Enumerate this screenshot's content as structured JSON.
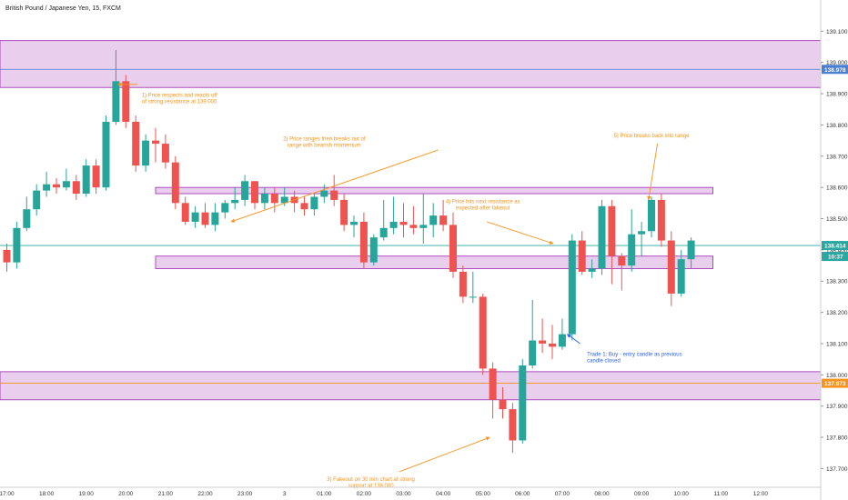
{
  "chart_data": {
    "type": "candlestick",
    "title": "British Pound / Japanese Yen, 15, FXCM",
    "ylim": [
      137.64,
      139.2
    ],
    "y_ticks": [
      "139.100",
      "139.000",
      "138.900",
      "138.800",
      "138.700",
      "138.600",
      "138.500",
      "138.400",
      "138.300",
      "138.200",
      "138.100",
      "138.000",
      "137.900",
      "137.800",
      "137.700"
    ],
    "x_ticks": [
      "17:00",
      "18:00",
      "19:00",
      "20:00",
      "21:00",
      "22:00",
      "23:00",
      "3",
      "01:00",
      "02:00",
      "03:00",
      "04:00",
      "05:00",
      "06:00",
      "07:00",
      "08:00",
      "09:00",
      "10:00",
      "11:00",
      "12:00"
    ],
    "x_tick_index": [
      0,
      4,
      8,
      12,
      16,
      20,
      24,
      28,
      32,
      36,
      40,
      44,
      48,
      52,
      56,
      60,
      64,
      68,
      72,
      76
    ],
    "candles": [
      [
        138.4,
        138.36,
        138.42,
        138.33
      ],
      [
        138.36,
        138.47,
        138.49,
        138.34
      ],
      [
        138.47,
        138.53,
        138.57,
        138.46
      ],
      [
        138.53,
        138.59,
        138.61,
        138.51
      ],
      [
        138.59,
        138.61,
        138.65,
        138.57
      ],
      [
        138.61,
        138.6,
        138.63,
        138.58
      ],
      [
        138.6,
        138.62,
        138.66,
        138.59
      ],
      [
        138.62,
        138.58,
        138.64,
        138.56
      ],
      [
        138.58,
        138.67,
        138.69,
        138.57
      ],
      [
        138.67,
        138.6,
        138.69,
        138.58
      ],
      [
        138.6,
        138.81,
        138.83,
        138.59
      ],
      [
        138.81,
        138.94,
        139.04,
        138.8
      ],
      [
        138.94,
        138.81,
        138.96,
        138.79
      ],
      [
        138.81,
        138.67,
        138.83,
        138.65
      ],
      [
        138.67,
        138.75,
        138.77,
        138.65
      ],
      [
        138.75,
        138.74,
        138.79,
        138.68
      ],
      [
        138.74,
        138.68,
        138.77,
        138.66
      ],
      [
        138.68,
        138.55,
        138.7,
        138.53
      ],
      [
        138.55,
        138.49,
        138.57,
        138.48
      ],
      [
        138.49,
        138.52,
        138.54,
        138.47
      ],
      [
        138.52,
        138.48,
        138.55,
        138.47
      ],
      [
        138.48,
        138.52,
        138.55,
        138.46
      ],
      [
        138.52,
        138.55,
        138.56,
        138.5
      ],
      [
        138.55,
        138.56,
        138.6,
        138.53
      ],
      [
        138.56,
        138.62,
        138.64,
        138.54
      ],
      [
        138.62,
        138.55,
        138.62,
        138.53
      ],
      [
        138.55,
        138.58,
        138.6,
        138.53
      ],
      [
        138.58,
        138.55,
        138.6,
        138.52
      ],
      [
        138.55,
        138.57,
        138.6,
        138.54
      ],
      [
        138.57,
        138.55,
        138.59,
        138.52
      ],
      [
        138.55,
        138.53,
        138.57,
        138.51
      ],
      [
        138.53,
        138.57,
        138.58,
        138.51
      ],
      [
        138.57,
        138.59,
        138.61,
        138.55
      ],
      [
        138.59,
        138.56,
        138.64,
        138.54
      ],
      [
        138.56,
        138.48,
        138.58,
        138.46
      ],
      [
        138.48,
        138.49,
        138.51,
        138.44
      ],
      [
        138.49,
        138.36,
        138.52,
        138.34
      ],
      [
        138.36,
        138.44,
        138.45,
        138.35
      ],
      [
        138.44,
        138.47,
        138.56,
        138.43
      ],
      [
        138.47,
        138.49,
        138.57,
        138.45
      ],
      [
        138.49,
        138.48,
        138.55,
        138.44
      ],
      [
        138.48,
        138.47,
        138.54,
        138.45
      ],
      [
        138.47,
        138.48,
        138.58,
        138.42
      ],
      [
        138.48,
        138.51,
        138.55,
        138.44
      ],
      [
        138.51,
        138.48,
        138.56,
        138.46
      ],
      [
        138.48,
        138.33,
        138.52,
        138.31
      ],
      [
        138.33,
        138.25,
        138.35,
        138.23
      ],
      [
        138.25,
        138.25,
        138.33,
        138.23
      ],
      [
        138.25,
        138.02,
        138.26,
        138.0
      ],
      [
        138.02,
        137.92,
        138.04,
        137.86
      ],
      [
        137.92,
        137.89,
        137.96,
        137.86
      ],
      [
        137.89,
        137.79,
        137.91,
        137.75
      ],
      [
        137.79,
        138.03,
        138.05,
        137.78
      ],
      [
        138.03,
        138.11,
        138.24,
        138.02
      ],
      [
        138.11,
        138.1,
        138.18,
        138.07
      ],
      [
        138.1,
        138.09,
        138.16,
        138.05
      ],
      [
        138.09,
        138.13,
        138.18,
        138.08
      ],
      [
        138.13,
        138.43,
        138.45,
        138.11
      ],
      [
        138.43,
        138.33,
        138.46,
        138.32
      ],
      [
        138.33,
        138.34,
        138.37,
        138.31
      ],
      [
        138.34,
        138.54,
        138.56,
        138.32
      ],
      [
        138.54,
        138.38,
        138.56,
        138.29
      ],
      [
        138.38,
        138.35,
        138.39,
        138.27
      ],
      [
        138.35,
        138.45,
        138.53,
        138.33
      ],
      [
        138.45,
        138.46,
        138.49,
        138.38
      ],
      [
        138.46,
        138.56,
        138.57,
        138.44
      ],
      [
        138.56,
        138.43,
        138.58,
        138.41
      ],
      [
        138.43,
        138.26,
        138.46,
        138.22
      ],
      [
        138.26,
        138.37,
        138.4,
        138.25
      ],
      [
        138.37,
        138.43,
        138.44,
        138.34
      ]
    ],
    "zones": [
      {
        "top": 139.07,
        "bottom": 138.92
      },
      {
        "top": 138.6,
        "bottom": 138.58
      },
      {
        "top": 138.38,
        "bottom": 138.34
      },
      {
        "top": 138.01,
        "bottom": 137.92
      }
    ],
    "price_lines": [
      {
        "value": 138.978,
        "label": "138.978",
        "color": "#4a7fd1"
      },
      {
        "value": 138.414,
        "label": "138.414",
        "color": "#2aa7a0"
      },
      {
        "value": 137.973,
        "label": "137.973",
        "color": "#f7931e"
      }
    ],
    "countdown": "10:37",
    "annotations": [
      {
        "text": "1) Price respects and reacts off",
        "text2": "of strong resistance at 139.000",
        "at": [
          13.2,
          138.93
        ],
        "to": [
          11.2,
          138.93
        ],
        "tx": [
          17.4,
          138.89
        ],
        "anchor": "middle"
      },
      {
        "text": "2) Price ranges then breaks out of",
        "text2": "range with bearish momentum",
        "at": [
          43.5,
          138.72
        ],
        "to": [
          22.6,
          138.49
        ],
        "tx": [
          32.0,
          138.75
        ],
        "anchor": "middle"
      },
      {
        "text": "3) Fakeout on 30 min chart at strong",
        "text2": "support at 138.000",
        "at": [
          39.6,
          137.69
        ],
        "to": [
          48.7,
          137.8
        ],
        "tx": [
          36.7,
          137.66
        ],
        "anchor": "middle"
      },
      {
        "text": "4) Price hits next resistance as",
        "text2": "expected after fakeout",
        "at": [
          48.4,
          138.49
        ],
        "to": [
          55.1,
          138.42
        ],
        "tx": [
          48.0,
          138.55
        ],
        "anchor": "middle"
      },
      {
        "text": "5) Price breaks back into range",
        "text2": "",
        "at": [
          65.6,
          138.74
        ],
        "to": [
          64.7,
          138.56
        ],
        "tx": [
          65.0,
          138.76
        ],
        "anchor": "middle"
      },
      {
        "text": "Trade 1: Buy - entry candle as previous",
        "text2": "candle closed",
        "at": [
          57.8,
          138.1
        ],
        "to": [
          56.5,
          138.13
        ],
        "tx": [
          58.5,
          138.06
        ],
        "anchor": "start"
      }
    ]
  }
}
